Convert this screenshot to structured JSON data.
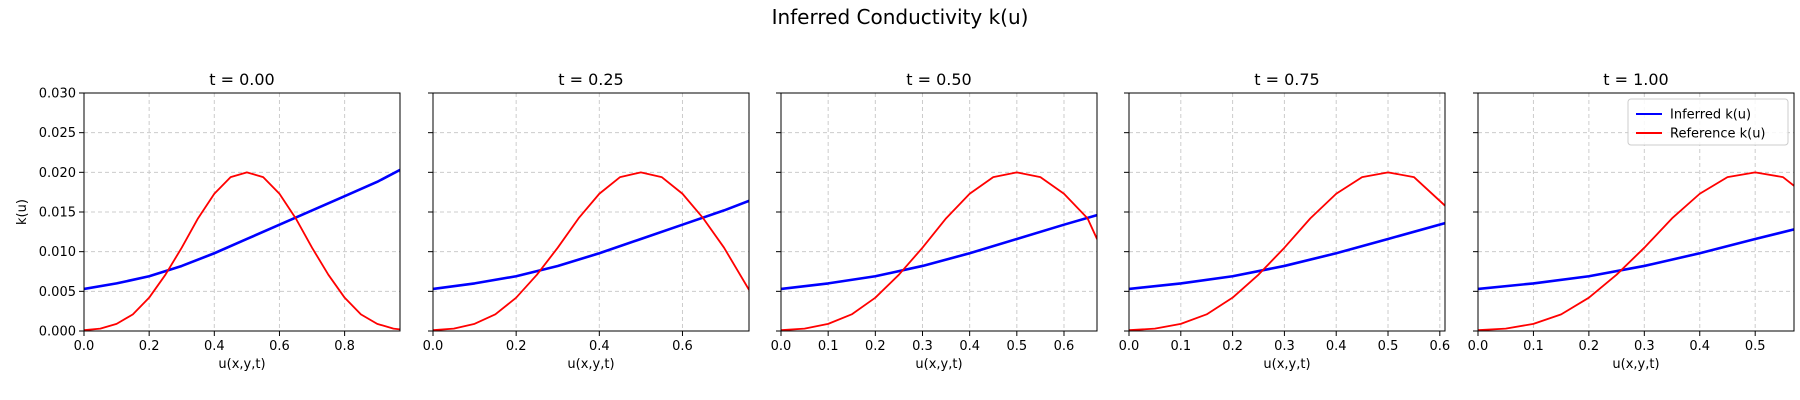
{
  "figure": {
    "suptitle": "Inferred Conductivity k(u)",
    "colors": {
      "inferred": "#0000ff",
      "reference": "#ff0000",
      "grid": "#cccccc",
      "axis": "#000000"
    }
  },
  "legend": {
    "placement": "top-right",
    "panel": 4,
    "entries": [
      {
        "label": "Inferred k(u)",
        "color": "#0000ff"
      },
      {
        "label": "Reference k(u)",
        "color": "#ff0000"
      }
    ]
  },
  "chart_data": [
    {
      "type": "line",
      "title": "t = 0.00",
      "xlabel": "u(x,y,t)",
      "ylabel": "k(u)",
      "xlim": [
        0,
        0.97
      ],
      "ylim": [
        0,
        0.03
      ],
      "xticks": [
        "0.0",
        "0.2",
        "0.4",
        "0.6",
        "0.8"
      ],
      "xtick_values": [
        0,
        0.2,
        0.4,
        0.6,
        0.8
      ],
      "yticks": [
        "0.000",
        "0.005",
        "0.010",
        "0.015",
        "0.020",
        "0.025",
        "0.030"
      ],
      "ytick_values": [
        0,
        0.005,
        0.01,
        0.015,
        0.02,
        0.025,
        0.03
      ],
      "grid": true,
      "series": [
        {
          "name": "Inferred k(u)",
          "x": [
            0,
            0.1,
            0.2,
            0.3,
            0.4,
            0.5,
            0.6,
            0.7,
            0.8,
            0.9,
            0.97
          ],
          "y": [
            0.0053,
            0.006,
            0.0069,
            0.0082,
            0.0098,
            0.0116,
            0.0134,
            0.0152,
            0.017,
            0.0188,
            0.0203
          ]
        },
        {
          "name": "Reference k(u)",
          "x": [
            0,
            0.05,
            0.1,
            0.15,
            0.2,
            0.25,
            0.3,
            0.35,
            0.4,
            0.45,
            0.5,
            0.55,
            0.6,
            0.65,
            0.7,
            0.75,
            0.8,
            0.85,
            0.9,
            0.95,
            0.97
          ],
          "y": [
            0.0001,
            0.0003,
            0.0009,
            0.0021,
            0.0042,
            0.0071,
            0.0105,
            0.0142,
            0.0173,
            0.0194,
            0.02,
            0.0194,
            0.0173,
            0.0142,
            0.0105,
            0.0071,
            0.0042,
            0.0021,
            0.0009,
            0.0003,
            0.0002
          ]
        }
      ]
    },
    {
      "type": "line",
      "title": "t = 0.25",
      "xlabel": "u(x,y,t)",
      "xlim": [
        0,
        0.76
      ],
      "ylim": [
        0,
        0.03
      ],
      "xticks": [
        "0.0",
        "0.2",
        "0.4",
        "0.6"
      ],
      "xtick_values": [
        0,
        0.2,
        0.4,
        0.6
      ],
      "grid": true,
      "series": [
        {
          "name": "Inferred k(u)",
          "x": [
            0,
            0.1,
            0.2,
            0.3,
            0.4,
            0.5,
            0.6,
            0.7,
            0.76
          ],
          "y": [
            0.0053,
            0.006,
            0.0069,
            0.0082,
            0.0098,
            0.0116,
            0.0134,
            0.0152,
            0.0164
          ]
        },
        {
          "name": "Reference k(u)",
          "x": [
            0,
            0.05,
            0.1,
            0.15,
            0.2,
            0.25,
            0.3,
            0.35,
            0.4,
            0.45,
            0.5,
            0.55,
            0.6,
            0.65,
            0.7,
            0.76
          ],
          "y": [
            0.0001,
            0.0003,
            0.0009,
            0.0021,
            0.0042,
            0.0071,
            0.0105,
            0.0142,
            0.0173,
            0.0194,
            0.02,
            0.0194,
            0.0173,
            0.0142,
            0.0105,
            0.0052
          ]
        }
      ]
    },
    {
      "type": "line",
      "title": "t = 0.50",
      "xlabel": "u(x,y,t)",
      "xlim": [
        0,
        0.67
      ],
      "ylim": [
        0,
        0.03
      ],
      "xticks": [
        "0.0",
        "0.1",
        "0.2",
        "0.3",
        "0.4",
        "0.5",
        "0.6"
      ],
      "xtick_values": [
        0,
        0.1,
        0.2,
        0.3,
        0.4,
        0.5,
        0.6
      ],
      "grid": true,
      "series": [
        {
          "name": "Inferred k(u)",
          "x": [
            0,
            0.1,
            0.2,
            0.3,
            0.4,
            0.5,
            0.6,
            0.67
          ],
          "y": [
            0.0053,
            0.006,
            0.0069,
            0.0082,
            0.0098,
            0.0116,
            0.0134,
            0.0146
          ]
        },
        {
          "name": "Reference k(u)",
          "x": [
            0,
            0.05,
            0.1,
            0.15,
            0.2,
            0.25,
            0.3,
            0.35,
            0.4,
            0.45,
            0.5,
            0.55,
            0.6,
            0.65,
            0.67
          ],
          "y": [
            0.0001,
            0.0003,
            0.0009,
            0.0021,
            0.0042,
            0.0071,
            0.0105,
            0.0142,
            0.0173,
            0.0194,
            0.02,
            0.0194,
            0.0173,
            0.0142,
            0.0116
          ]
        }
      ]
    },
    {
      "type": "line",
      "title": "t = 0.75",
      "xlabel": "u(x,y,t)",
      "xlim": [
        0,
        0.61
      ],
      "ylim": [
        0,
        0.03
      ],
      "xticks": [
        "0.0",
        "0.1",
        "0.2",
        "0.3",
        "0.4",
        "0.5",
        "0.6"
      ],
      "xtick_values": [
        0,
        0.1,
        0.2,
        0.3,
        0.4,
        0.5,
        0.6
      ],
      "grid": true,
      "series": [
        {
          "name": "Inferred k(u)",
          "x": [
            0,
            0.1,
            0.2,
            0.3,
            0.4,
            0.5,
            0.61
          ],
          "y": [
            0.0053,
            0.006,
            0.0069,
            0.0082,
            0.0098,
            0.0116,
            0.0136
          ]
        },
        {
          "name": "Reference k(u)",
          "x": [
            0,
            0.05,
            0.1,
            0.15,
            0.2,
            0.25,
            0.3,
            0.35,
            0.4,
            0.45,
            0.5,
            0.55,
            0.61
          ],
          "y": [
            0.0001,
            0.0003,
            0.0009,
            0.0021,
            0.0042,
            0.0071,
            0.0105,
            0.0142,
            0.0173,
            0.0194,
            0.02,
            0.0194,
            0.0158
          ]
        }
      ]
    },
    {
      "type": "line",
      "title": "t = 1.00",
      "xlabel": "u(x,y,t)",
      "xlim": [
        0,
        0.57
      ],
      "ylim": [
        0,
        0.03
      ],
      "xticks": [
        "0.0",
        "0.1",
        "0.2",
        "0.3",
        "0.4",
        "0.5"
      ],
      "xtick_values": [
        0,
        0.1,
        0.2,
        0.3,
        0.4,
        0.5
      ],
      "grid": true,
      "series": [
        {
          "name": "Inferred k(u)",
          "x": [
            0,
            0.1,
            0.2,
            0.3,
            0.4,
            0.5,
            0.57
          ],
          "y": [
            0.0053,
            0.006,
            0.0069,
            0.0082,
            0.0098,
            0.0116,
            0.0128
          ]
        },
        {
          "name": "Reference k(u)",
          "x": [
            0,
            0.05,
            0.1,
            0.15,
            0.2,
            0.25,
            0.3,
            0.35,
            0.4,
            0.45,
            0.5,
            0.55,
            0.57
          ],
          "y": [
            0.0001,
            0.0003,
            0.0009,
            0.0021,
            0.0042,
            0.0071,
            0.0105,
            0.0142,
            0.0173,
            0.0194,
            0.02,
            0.0194,
            0.0183
          ]
        }
      ]
    }
  ]
}
